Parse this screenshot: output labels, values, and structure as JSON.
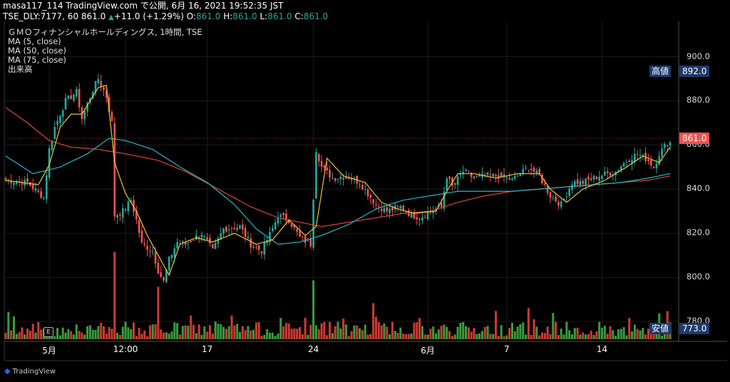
{
  "header": {
    "line1": "masa117_114 TradingView.com で公開, 6月 16, 2021 19:52:35 JST",
    "line2_prefix": "TSE_DLY:7177, 60 861.0",
    "change": "+11.0 (+1.29%)",
    "o_label": "O:",
    "o_value": "861.0",
    "h_label": "H:",
    "h_value": "861.0",
    "l_label": "L:",
    "l_value": "861.0",
    "c_label": "C:",
    "c_value": "861.0"
  },
  "legend": {
    "title": "ＧＭＯフィナンシャルホールディングス, 1時間, TSE",
    "ma5": "MA (5, close)",
    "ma50": "MA (50, close)",
    "ma75": "MA (75, close)",
    "volume": "出来高"
  },
  "badges": {
    "high_label": "高値",
    "high_value": "892.0",
    "low_label": "安値",
    "low_value": "773.0",
    "last_value": "861.0"
  },
  "event_marker": "E",
  "brand": "TradingView",
  "colors": {
    "up": "#26a69a",
    "down": "#ef5350",
    "vol_up": "#3a9a3f",
    "vol_down": "#cc3a32",
    "ma5": "#e8c33a",
    "ma50": "#26b6c8",
    "ma75": "#d9463a",
    "badge": "#1f3a6b",
    "last": "#ef5350"
  },
  "chart_data": {
    "type": "candlestick",
    "symbol": "TSE_DLY:7177",
    "interval": "60",
    "y_axis_ticks": [
      "780.0",
      "800.0",
      "820.0",
      "840.0",
      "860.0",
      "880.0",
      "900.0"
    ],
    "ylim": [
      771,
      916
    ],
    "x_axis_ticks": [
      "5月",
      "12:00",
      "17",
      "24",
      "6月",
      "7",
      "14"
    ],
    "x_tick_index": [
      16,
      44,
      74,
      113,
      155,
      184,
      219
    ],
    "n_bars": 245,
    "close_anchors": [
      [
        0,
        844
      ],
      [
        8,
        843
      ],
      [
        14,
        836
      ],
      [
        16,
        858
      ],
      [
        18,
        868
      ],
      [
        22,
        880
      ],
      [
        26,
        884
      ],
      [
        28,
        872
      ],
      [
        32,
        885
      ],
      [
        34,
        890
      ],
      [
        37,
        882
      ],
      [
        39,
        870
      ],
      [
        40,
        828
      ],
      [
        43,
        830
      ],
      [
        46,
        835
      ],
      [
        48,
        826
      ],
      [
        50,
        815
      ],
      [
        54,
        812
      ],
      [
        56,
        803
      ],
      [
        58,
        798
      ],
      [
        60,
        808
      ],
      [
        63,
        816
      ],
      [
        66,
        815
      ],
      [
        72,
        820
      ],
      [
        76,
        812
      ],
      [
        80,
        822
      ],
      [
        86,
        823
      ],
      [
        90,
        815
      ],
      [
        94,
        812
      ],
      [
        98,
        822
      ],
      [
        100,
        828
      ],
      [
        104,
        826
      ],
      [
        108,
        818
      ],
      [
        112,
        815
      ],
      [
        114,
        858
      ],
      [
        116,
        850
      ],
      [
        120,
        845
      ],
      [
        125,
        846
      ],
      [
        130,
        843
      ],
      [
        136,
        833
      ],
      [
        140,
        830
      ],
      [
        145,
        832
      ],
      [
        148,
        829
      ],
      [
        152,
        827
      ],
      [
        156,
        830
      ],
      [
        160,
        832
      ],
      [
        162,
        846
      ],
      [
        164,
        841
      ],
      [
        168,
        848
      ],
      [
        172,
        845
      ],
      [
        176,
        846
      ],
      [
        182,
        846
      ],
      [
        186,
        844
      ],
      [
        192,
        850
      ],
      [
        196,
        846
      ],
      [
        200,
        837
      ],
      [
        204,
        833
      ],
      [
        208,
        843
      ],
      [
        212,
        843
      ],
      [
        218,
        846
      ],
      [
        224,
        848
      ],
      [
        228,
        853
      ],
      [
        232,
        856
      ],
      [
        236,
        853
      ],
      [
        238,
        850
      ],
      [
        240,
        856
      ],
      [
        243,
        861
      ],
      [
        244,
        861
      ]
    ],
    "ma5_anchors": [
      [
        0,
        844
      ],
      [
        12,
        842
      ],
      [
        16,
        851
      ],
      [
        20,
        868
      ],
      [
        24,
        874
      ],
      [
        28,
        874
      ],
      [
        34,
        886
      ],
      [
        37,
        887
      ],
      [
        40,
        852
      ],
      [
        44,
        838
      ],
      [
        48,
        830
      ],
      [
        52,
        819
      ],
      [
        56,
        810
      ],
      [
        60,
        801
      ],
      [
        64,
        815
      ],
      [
        70,
        818
      ],
      [
        76,
        816
      ],
      [
        84,
        820
      ],
      [
        92,
        815
      ],
      [
        98,
        817
      ],
      [
        104,
        826
      ],
      [
        110,
        819
      ],
      [
        114,
        823
      ],
      [
        118,
        854
      ],
      [
        124,
        846
      ],
      [
        132,
        843
      ],
      [
        138,
        834
      ],
      [
        144,
        831
      ],
      [
        150,
        829
      ],
      [
        158,
        830
      ],
      [
        162,
        839
      ],
      [
        166,
        847
      ],
      [
        172,
        847
      ],
      [
        180,
        845
      ],
      [
        188,
        847
      ],
      [
        196,
        847
      ],
      [
        200,
        840
      ],
      [
        206,
        834
      ],
      [
        212,
        840
      ],
      [
        220,
        844
      ],
      [
        228,
        850
      ],
      [
        234,
        855
      ],
      [
        240,
        852
      ],
      [
        244,
        859
      ]
    ],
    "ma50_anchors": [
      [
        0,
        855
      ],
      [
        10,
        847
      ],
      [
        20,
        850
      ],
      [
        30,
        856
      ],
      [
        38,
        863
      ],
      [
        44,
        862
      ],
      [
        54,
        858
      ],
      [
        64,
        850
      ],
      [
        74,
        843
      ],
      [
        84,
        833
      ],
      [
        92,
        822
      ],
      [
        100,
        815
      ],
      [
        108,
        816
      ],
      [
        116,
        819
      ],
      [
        126,
        824
      ],
      [
        136,
        831
      ],
      [
        146,
        835
      ],
      [
        156,
        837
      ],
      [
        166,
        839
      ],
      [
        176,
        839
      ],
      [
        186,
        839
      ],
      [
        196,
        840
      ],
      [
        206,
        841
      ],
      [
        216,
        842
      ],
      [
        226,
        843
      ],
      [
        236,
        845
      ],
      [
        244,
        847
      ]
    ],
    "ma75_anchors": [
      [
        0,
        877
      ],
      [
        8,
        870
      ],
      [
        16,
        862
      ],
      [
        24,
        859
      ],
      [
        34,
        858
      ],
      [
        44,
        856
      ],
      [
        56,
        853
      ],
      [
        66,
        848
      ],
      [
        78,
        840
      ],
      [
        90,
        832
      ],
      [
        100,
        827
      ],
      [
        108,
        825
      ],
      [
        116,
        823
      ],
      [
        126,
        825
      ],
      [
        136,
        827
      ],
      [
        146,
        829
      ],
      [
        156,
        830
      ],
      [
        166,
        834
      ],
      [
        176,
        837
      ],
      [
        186,
        839
      ],
      [
        196,
        840
      ],
      [
        206,
        841
      ],
      [
        216,
        842
      ],
      [
        226,
        843
      ],
      [
        236,
        844
      ],
      [
        244,
        846
      ]
    ],
    "volume_scale_max": 300,
    "vol_spikes": [
      [
        40,
        230
      ],
      [
        56,
        138
      ],
      [
        113,
        155
      ],
      [
        135,
        95
      ],
      [
        192,
        82
      ],
      [
        229,
        56
      ],
      [
        240,
        68
      ],
      [
        243,
        74
      ]
    ],
    "high": 892.0,
    "low": 773.0,
    "last": 861.0
  }
}
